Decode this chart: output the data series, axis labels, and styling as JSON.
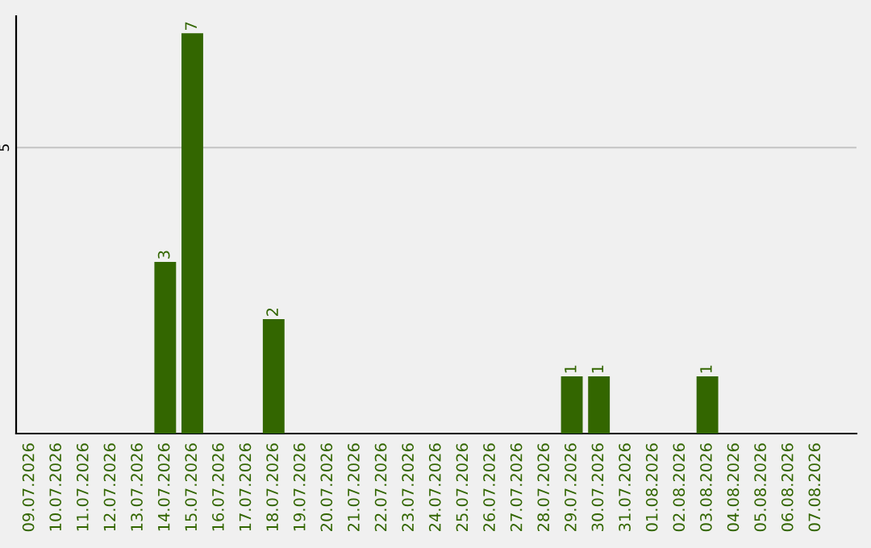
{
  "chart_data": {
    "type": "bar",
    "categories": [
      "09.07.2026",
      "10.07.2026",
      "11.07.2026",
      "12.07.2026",
      "13.07.2026",
      "14.07.2026",
      "15.07.2026",
      "16.07.2026",
      "17.07.2026",
      "18.07.2026",
      "19.07.2026",
      "20.07.2026",
      "21.07.2026",
      "22.07.2026",
      "23.07.2026",
      "24.07.2026",
      "25.07.2026",
      "26.07.2026",
      "27.07.2026",
      "28.07.2026",
      "29.07.2026",
      "30.07.2026",
      "31.07.2026",
      "01.08.2026",
      "02.08.2026",
      "03.08.2026",
      "04.08.2026",
      "05.08.2026",
      "06.08.2026",
      "07.08.2026"
    ],
    "values": [
      0,
      0,
      0,
      0,
      0,
      3,
      7,
      0,
      0,
      2,
      0,
      0,
      0,
      0,
      0,
      0,
      0,
      0,
      0,
      0,
      1,
      1,
      0,
      0,
      0,
      1,
      0,
      0,
      0,
      0
    ],
    "color": "#336600",
    "value_labels": [
      null,
      null,
      null,
      null,
      null,
      "3",
      "7",
      null,
      null,
      "2",
      null,
      null,
      null,
      null,
      null,
      null,
      null,
      null,
      null,
      null,
      "1",
      "1",
      null,
      null,
      null,
      "1",
      null,
      null,
      null,
      null
    ],
    "ylim": [
      0,
      7.3
    ],
    "yticks": [
      5
    ],
    "grid": "y"
  }
}
